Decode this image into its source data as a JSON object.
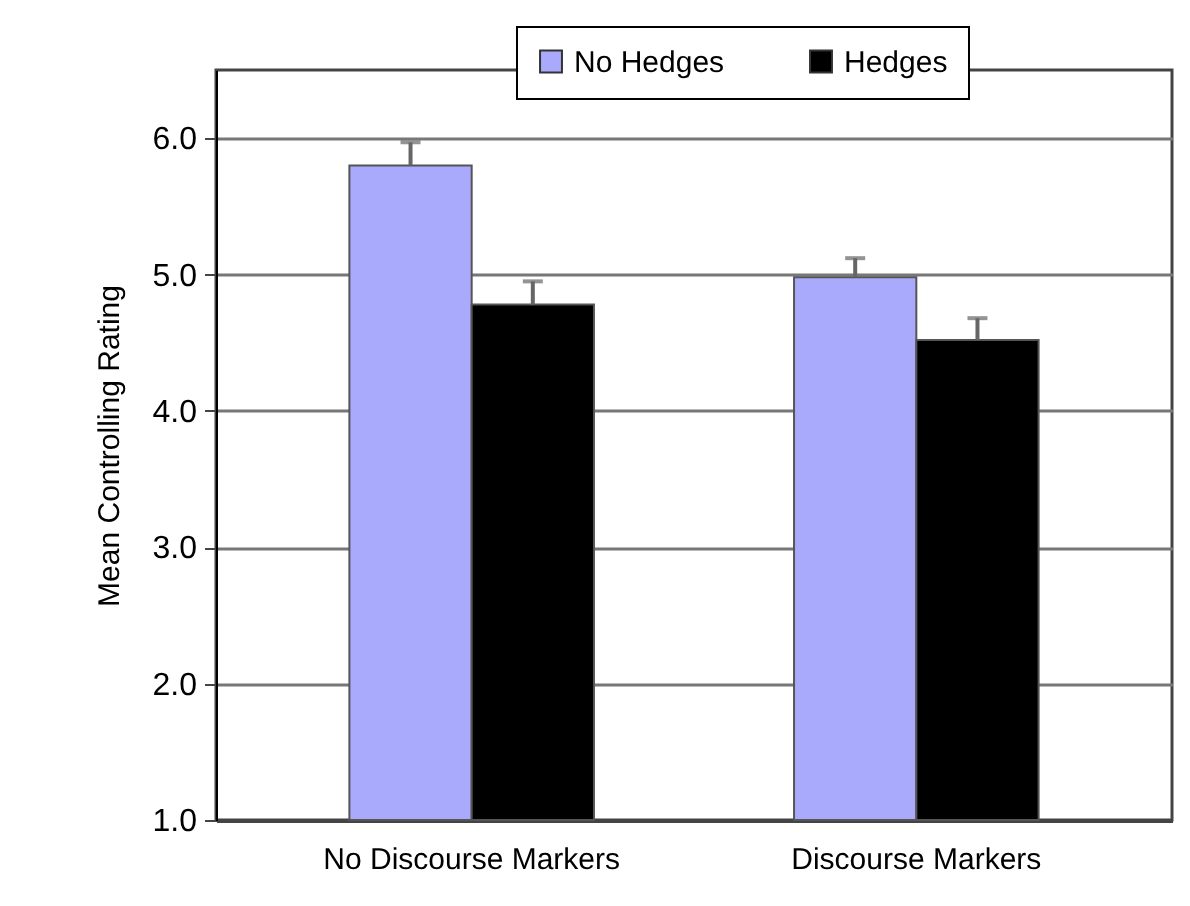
{
  "chart_data": {
    "type": "bar",
    "ylabel": "Mean Controlling Rating",
    "categories": [
      "No Discourse Markers",
      "Discourse Markers"
    ],
    "series": [
      {
        "name": "No Hedges",
        "color": "#a9aafc",
        "values": [
          5.8,
          4.98
        ],
        "errors": [
          0.17,
          0.14
        ]
      },
      {
        "name": "Hedges",
        "color": "#000000",
        "values": [
          4.78,
          4.52
        ],
        "errors": [
          0.17,
          0.16
        ]
      }
    ],
    "ylim": [
      1,
      6.5
    ],
    "yticks": [
      {
        "value": 1,
        "label": "1.0"
      },
      {
        "value": 2,
        "label": "2.0"
      },
      {
        "value": 3,
        "label": "3.0"
      },
      {
        "value": 4,
        "label": "4.0"
      },
      {
        "value": 5,
        "label": "5.0"
      },
      {
        "value": 6,
        "label": "6.0"
      }
    ],
    "grid": "y",
    "legend": "top"
  }
}
